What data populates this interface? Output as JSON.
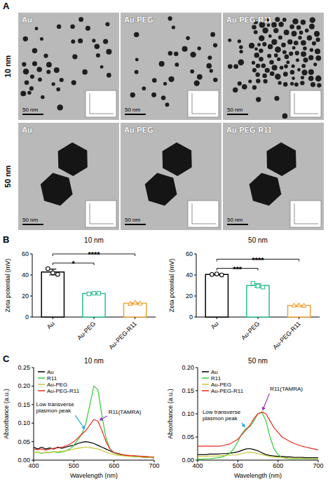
{
  "panel_a": {
    "letter": "A",
    "rows": [
      {
        "label": "10 nm",
        "images": [
          "Au",
          "Au-PEG",
          "Au-PEG-R11"
        ],
        "scale_bar": "50 nm"
      },
      {
        "label": "50 nm",
        "images": [
          "Au",
          "Au-PEG",
          "Au-PEG-R11"
        ],
        "scale_bar": "50 nm"
      }
    ]
  },
  "panel_letters": {
    "b": "B",
    "c": "C"
  },
  "chart_data": [
    {
      "type": "bar",
      "title": "10 nm",
      "categories": [
        "Au",
        "Au-PEG",
        "Au-PEG-R11"
      ],
      "values": [
        42.8,
        22.4,
        13.1
      ],
      "errors": [
        2.8,
        0.35,
        0.6
      ],
      "points": [
        [
          46,
          42,
          40.5
        ],
        [
          22,
          22.6,
          22.6
        ],
        [
          12.6,
          13.8,
          12.9
        ]
      ],
      "colors": [
        "#000000",
        "#2dbf8c",
        "#f2a33a"
      ],
      "ylabel": "Zeta potential (mV)",
      "ylim": [
        0,
        60
      ],
      "yticks": [
        0,
        20,
        40,
        60
      ],
      "significance": [
        {
          "groups": [
            "Au",
            "Au-PEG"
          ],
          "label": "*"
        },
        {
          "groups": [
            "Au",
            "Au-PEG-R11"
          ],
          "label": "****"
        }
      ]
    },
    {
      "type": "bar",
      "title": "50 nm",
      "categories": [
        "Au",
        "Au-PEG",
        "Au-PEG-R11"
      ],
      "values": [
        40.5,
        30,
        11
      ],
      "errors": [
        0.5,
        1.8,
        0.2
      ],
      "points": [
        [
          40.5,
          41,
          40
        ],
        [
          32,
          29.5,
          28.5
        ],
        [
          11,
          11.2,
          10.8
        ]
      ],
      "colors": [
        "#000000",
        "#2dbf8c",
        "#f2a33a"
      ],
      "ylabel": "Zeta potential (mV)",
      "ylim": [
        0,
        60
      ],
      "yticks": [
        0,
        20,
        40,
        60
      ],
      "significance": [
        {
          "groups": [
            "Au",
            "Au-PEG"
          ],
          "label": "***"
        },
        {
          "groups": [
            "Au",
            "Au-PEG-R11"
          ],
          "label": "****"
        }
      ]
    },
    {
      "type": "line",
      "title": "10 nm",
      "x": [
        400,
        410,
        420,
        430,
        440,
        450,
        460,
        470,
        480,
        490,
        500,
        510,
        520,
        530,
        540,
        550,
        560,
        570,
        580,
        590,
        600,
        610,
        620,
        630,
        640,
        650,
        660,
        670,
        680,
        690,
        700
      ],
      "series": [
        {
          "name": "Au",
          "color": "#000000",
          "values": [
            0.035,
            0.03,
            0.035,
            0.03,
            0.033,
            0.03,
            0.035,
            0.032,
            0.035,
            0.038,
            0.04,
            0.045,
            0.048,
            0.05,
            0.048,
            0.045,
            0.04,
            0.035,
            0.03,
            0.025,
            0.02,
            0.018,
            0.015,
            0.013,
            0.012,
            0.01,
            0.01,
            0.008,
            0.008,
            0.007,
            0.006
          ]
        },
        {
          "name": "R11",
          "color": "#33cc33",
          "values": [
            0.02,
            0.022,
            0.018,
            0.021,
            0.02,
            0.023,
            0.02,
            0.022,
            0.025,
            0.03,
            0.04,
            0.055,
            0.07,
            0.1,
            0.15,
            0.2,
            0.19,
            0.12,
            0.06,
            0.03,
            0.02,
            0.016,
            0.014,
            0.012,
            0.011,
            0.01,
            0.01,
            0.009,
            0.008,
            0.008,
            0.007
          ]
        },
        {
          "name": "Au-PEG",
          "color": "#c9c93a",
          "values": [
            0.02,
            0.022,
            0.019,
            0.021,
            0.02,
            0.022,
            0.023,
            0.024,
            0.025,
            0.027,
            0.03,
            0.032,
            0.034,
            0.035,
            0.034,
            0.032,
            0.03,
            0.026,
            0.022,
            0.018,
            0.015,
            0.013,
            0.012,
            0.011,
            0.01,
            0.009,
            0.009,
            0.008,
            0.008,
            0.007,
            0.007
          ]
        },
        {
          "name": "Au-PEG-R11",
          "color": "#ee2a1e",
          "values": [
            0.03,
            0.028,
            0.03,
            0.027,
            0.03,
            0.032,
            0.033,
            0.035,
            0.038,
            0.043,
            0.05,
            0.06,
            0.07,
            0.08,
            0.095,
            0.11,
            0.105,
            0.08,
            0.05,
            0.03,
            0.02,
            0.017,
            0.015,
            0.013,
            0.012,
            0.012,
            0.011,
            0.01,
            0.01,
            0.009,
            0.009
          ]
        }
      ],
      "xlabel": "Wavelength (nm)",
      "ylabel": "Absorbance (a.u.)",
      "xlim": [
        400,
        700
      ],
      "xticks": [
        400,
        500,
        600,
        700
      ],
      "ylim": [
        0,
        0.25
      ],
      "yticks": [
        {
          "value": 0,
          "label": "0.00"
        },
        0.05,
        {
          "value": 0.1,
          "label": "0.10"
        },
        0.15,
        {
          "value": 0.2,
          "label": "0.20"
        },
        0.25
      ],
      "legend": "upper left",
      "annotations": [
        {
          "text": "Low transverse plasmon peak",
          "color": "#2aa7e0"
        },
        {
          "text": "R11(TAMRA)",
          "color": "#9b2fc9"
        }
      ]
    },
    {
      "type": "line",
      "title": "50 nm",
      "x": [
        400,
        410,
        420,
        430,
        440,
        450,
        460,
        470,
        480,
        490,
        500,
        510,
        520,
        530,
        540,
        550,
        560,
        570,
        580,
        590,
        600,
        610,
        620,
        630,
        640,
        650,
        660,
        670,
        680,
        690,
        700
      ],
      "series": [
        {
          "name": "Au",
          "color": "#000000",
          "values": [
            0.012,
            0.012,
            0.012,
            0.013,
            0.013,
            0.013,
            0.014,
            0.014,
            0.015,
            0.016,
            0.018,
            0.021,
            0.024,
            0.025,
            0.023,
            0.02,
            0.016,
            0.012,
            0.01,
            0.009,
            0.008,
            0.008,
            0.007,
            0.007,
            0.006,
            0.006,
            0.006,
            0.005,
            0.005,
            0.005,
            0.005
          ]
        },
        {
          "name": "R11",
          "color": "#33cc33",
          "values": [
            0.002,
            0.002,
            0.003,
            0.003,
            0.004,
            0.005,
            0.007,
            0.01,
            0.015,
            0.025,
            0.04,
            0.057,
            0.068,
            0.072,
            0.085,
            0.1,
            0.103,
            0.085,
            0.05,
            0.025,
            0.012,
            0.006,
            0.004,
            0.003,
            0.003,
            0.003,
            0.003,
            0.003,
            0.003,
            0.003,
            0.003
          ]
        },
        {
          "name": "Au-PEG",
          "color": "#c9c93a",
          "values": [
            0.008,
            0.008,
            0.008,
            0.009,
            0.009,
            0.009,
            0.01,
            0.01,
            0.011,
            0.011,
            0.012,
            0.014,
            0.016,
            0.017,
            0.016,
            0.014,
            0.012,
            0.01,
            0.008,
            0.007,
            0.006,
            0.005,
            0.005,
            0.004,
            0.004,
            0.004,
            0.004,
            0.003,
            0.003,
            0.003,
            0.003
          ]
        },
        {
          "name": "Au-PEG-R11",
          "color": "#ee2a1e",
          "values": [
            0.03,
            0.03,
            0.03,
            0.03,
            0.03,
            0.03,
            0.031,
            0.033,
            0.035,
            0.04,
            0.045,
            0.055,
            0.065,
            0.075,
            0.09,
            0.1,
            0.104,
            0.1,
            0.085,
            0.07,
            0.06,
            0.05,
            0.045,
            0.04,
            0.036,
            0.033,
            0.03,
            0.028,
            0.026,
            0.024,
            0.022
          ]
        }
      ],
      "xlabel": "Wavelength (nm)",
      "ylabel": "Absorbance (a.u.)",
      "xlim": [
        400,
        700
      ],
      "xticks": [
        400,
        500,
        600,
        700
      ],
      "ylim": [
        0,
        0.2
      ],
      "yticks": [
        {
          "value": 0,
          "label": "0.00"
        },
        0.05,
        {
          "value": 0.1,
          "label": "0.10"
        },
        0.15,
        {
          "value": 0.2,
          "label": "0.20"
        }
      ],
      "legend": "upper left",
      "annotations": [
        {
          "text": "Low transverse plasmon peak",
          "color": "#2aa7e0"
        },
        {
          "text": "R11(TAMRA)",
          "color": "#9b2fc9"
        }
      ]
    }
  ]
}
